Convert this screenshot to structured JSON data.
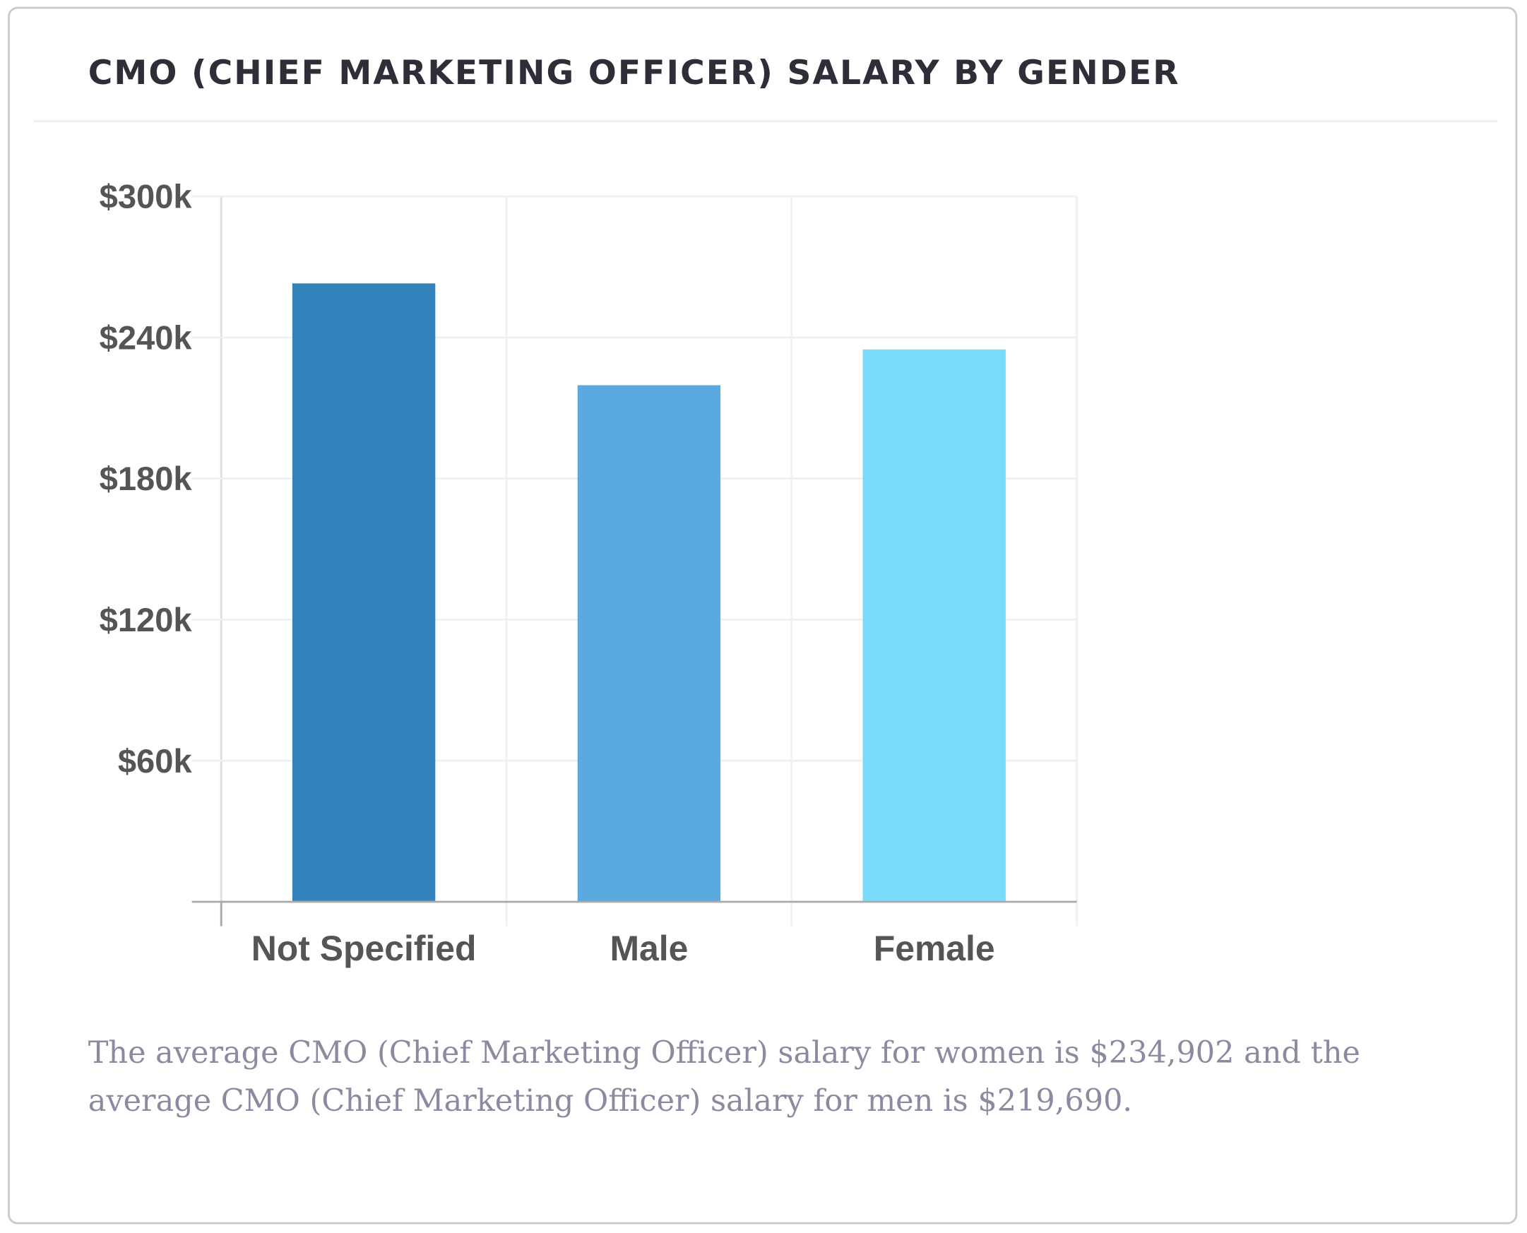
{
  "title": "CMO (CHIEF MARKETING OFFICER) SALARY BY GENDER",
  "summary": "The average CMO (Chief Marketing Officer) salary for women is $234,902 and the average CMO (Chief Marketing Officer) salary for men is $219,690.",
  "chart_data": {
    "type": "bar",
    "categories": [
      "Not Specified",
      "Male",
      "Female"
    ],
    "values": [
      263000,
      219690,
      234902
    ],
    "colors": [
      "#3283bb",
      "#5aa9df",
      "#7adcfa"
    ],
    "ylim": [
      0,
      300000
    ],
    "yticks": [
      60000,
      120000,
      180000,
      240000,
      300000
    ],
    "ytick_labels": [
      "$60k",
      "$120k",
      "$180k",
      "$240k",
      "$300k"
    ],
    "grid": true,
    "xlabel": "",
    "ylabel": ""
  }
}
